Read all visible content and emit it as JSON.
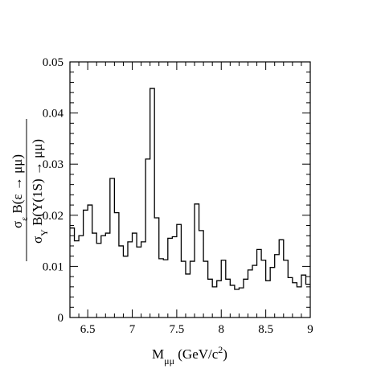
{
  "chart_data": {
    "type": "histogram",
    "title": "",
    "xlabel": "M_{μμ} (GeV/c²)",
    "ylabel": {
      "numerator": "σ_ε B(ε → μμ)",
      "denominator": "σ_Υ B(Υ(1S) → μμ)"
    },
    "xlim": [
      6.3,
      9.0
    ],
    "ylim": [
      0.0,
      0.05
    ],
    "x_ticks": [
      6.5,
      7,
      7.5,
      8,
      8.5,
      9
    ],
    "x_tick_labels": [
      "6.5",
      "7",
      "7.5",
      "8",
      "8.5",
      "9"
    ],
    "y_ticks": [
      0,
      0.01,
      0.02,
      0.03,
      0.04,
      0.05
    ],
    "y_tick_labels": [
      "0",
      "0.01",
      "0.02",
      "0.03",
      "0.04",
      "0.05"
    ],
    "grid": false,
    "legend": "none",
    "bin_width": 0.05,
    "bin_edges_start": 6.3,
    "values": [
      0.0175,
      0.015,
      0.016,
      0.021,
      0.022,
      0.0165,
      0.0145,
      0.016,
      0.0165,
      0.0272,
      0.0205,
      0.014,
      0.012,
      0.0148,
      0.0165,
      0.0138,
      0.0148,
      0.031,
      0.0448,
      0.0195,
      0.0115,
      0.0113,
      0.0155,
      0.0158,
      0.0182,
      0.011,
      0.0085,
      0.011,
      0.0222,
      0.017,
      0.011,
      0.0075,
      0.006,
      0.0072,
      0.0112,
      0.0075,
      0.0063,
      0.0055,
      0.0058,
      0.0075,
      0.0093,
      0.0102,
      0.0133,
      0.0112,
      0.0072,
      0.0098,
      0.0123,
      0.0152,
      0.0112,
      0.0078,
      0.0068,
      0.006,
      0.0083,
      0.0065
    ]
  }
}
